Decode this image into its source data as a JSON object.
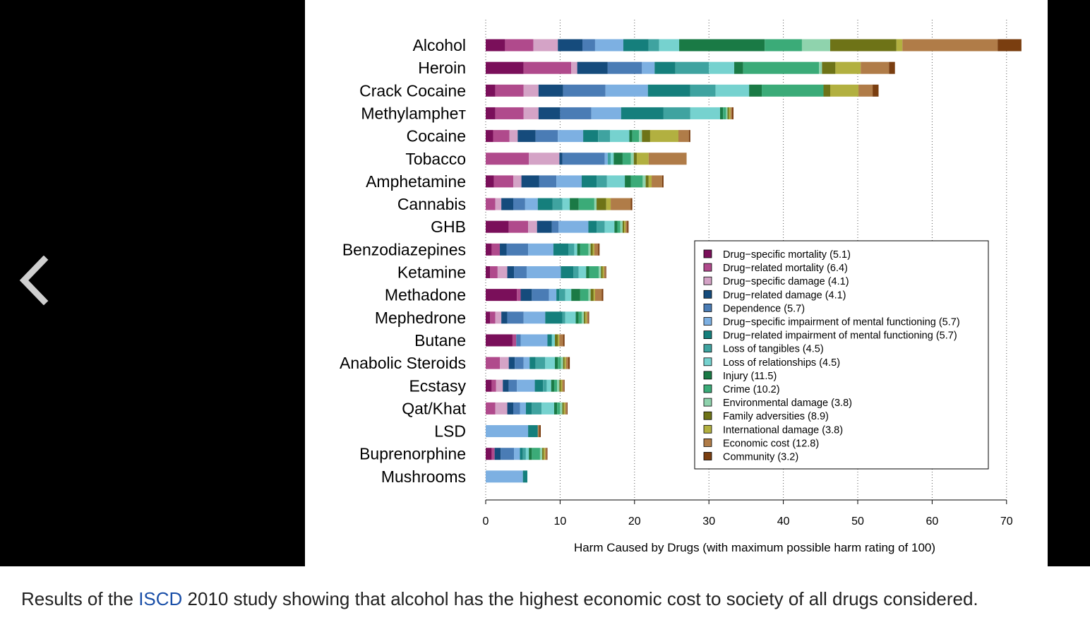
{
  "colors": {
    "viewer_background": "#000000",
    "caption_link": "#1a4fa8",
    "arrow": "#cfcfcf"
  },
  "viewer": {
    "prev_icon": "chevron-left-icon"
  },
  "caption": {
    "before": "Results of the ",
    "link": "ISCD",
    "after": " 2010 study showing that alcohol has the highest economic cost to society of all drugs considered."
  },
  "chart_data": {
    "type": "bar",
    "orientation": "horizontal",
    "stacked": true,
    "xlabel": "Harm Caused by Drugs (with maximum possible harm rating of 100)",
    "xlim": [
      0,
      70
    ],
    "xticks": [
      0,
      10,
      20,
      30,
      40,
      50,
      60,
      70
    ],
    "grid": "vertical dotted",
    "legend_position": "right",
    "categories": [
      "Alcohol",
      "Heroin",
      "Crack Cocaine",
      "Methylampheт",
      "Cocaine",
      "Tobacco",
      "Amphetamine",
      "Cannabis",
      "GHB",
      "Benzodiazepines",
      "Ketamine",
      "Methadone",
      "Mephedrone",
      "Butane",
      "Anabolic Steroids",
      "Ecstasy",
      "Qat/Khat",
      "LSD",
      "Buprenorphine",
      "Mushrooms"
    ],
    "series": [
      {
        "name": "Drug−specific mortality (5.1)",
        "color": "#7a0f5a",
        "values": [
          2.6,
          5.1,
          1.3,
          1.3,
          1.0,
          0,
          1.1,
          0,
          3.1,
          0.8,
          0.6,
          4.2,
          0.6,
          3.6,
          0,
          0.8,
          0,
          0,
          0.8,
          0
        ]
      },
      {
        "name": "Drug−related mortality (6.4)",
        "color": "#b04a8c",
        "values": [
          3.8,
          6.4,
          3.8,
          3.8,
          2.2,
          5.8,
          2.6,
          1.3,
          2.6,
          1.1,
          1.0,
          0.5,
          0.7,
          0.5,
          1.9,
          0.6,
          1.3,
          0,
          0.4,
          0
        ]
      },
      {
        "name": "Drug−specific damage (4.1)",
        "color": "#d4a3c6",
        "values": [
          3.3,
          0.8,
          2.0,
          2.0,
          1.1,
          4.1,
          1.1,
          0.8,
          1.2,
          0,
          1.3,
          0,
          0.8,
          0,
          1.2,
          0.9,
          1.6,
          0,
          0,
          0
        ]
      },
      {
        "name": "Drug−related damage (4.1)",
        "color": "#154b7c",
        "values": [
          3.3,
          4.1,
          3.3,
          2.9,
          2.4,
          0.4,
          2.4,
          1.6,
          2.0,
          0.9,
          0.9,
          1.5,
          0.8,
          0,
          0.8,
          0.8,
          0.8,
          0,
          0.8,
          0
        ]
      },
      {
        "name": "Dependence (5.7)",
        "color": "#4a7cb5",
        "values": [
          1.7,
          4.6,
          5.7,
          4.2,
          3.0,
          5.7,
          2.3,
          1.6,
          0.9,
          2.9,
          1.7,
          2.3,
          2.2,
          0.6,
          1.2,
          1.1,
          0.9,
          0,
          1.8,
          0
        ]
      },
      {
        "name": "Drug−specific impairment of mental functioning (5.7)",
        "color": "#7db0e2",
        "values": [
          3.8,
          1.7,
          5.7,
          4.0,
          3.4,
          0.4,
          3.4,
          1.7,
          4.0,
          3.4,
          4.6,
          1.0,
          2.9,
          3.6,
          0.8,
          2.4,
          0.8,
          5.7,
          0.8,
          5.0
        ]
      },
      {
        "name": "Drug−related impairment of mental functioning (5.7)",
        "color": "#157f7c",
        "values": [
          3.4,
          2.8,
          5.7,
          5.7,
          2.0,
          0,
          2.0,
          2.0,
          1.1,
          2.0,
          1.7,
          0.4,
          2.3,
          0.6,
          0.8,
          1.1,
          0.8,
          1.3,
          0.4,
          0.6
        ]
      },
      {
        "name": "Loss of tangibles (4.5)",
        "color": "#3fa3a0",
        "values": [
          1.4,
          4.5,
          3.4,
          3.6,
          1.6,
          0.4,
          1.4,
          1.3,
          1.1,
          0.8,
          0.7,
          0.8,
          0.4,
          0,
          1.3,
          0.5,
          1.3,
          0,
          0.4,
          0
        ]
      },
      {
        "name": "Loss of relationships (4.5)",
        "color": "#76d2cf",
        "values": [
          2.7,
          3.4,
          4.5,
          4.0,
          2.6,
          0.4,
          2.4,
          1.0,
          1.3,
          0.4,
          1.0,
          0.8,
          1.4,
          0.4,
          1.3,
          0.6,
          1.7,
          0,
          0.4,
          0
        ]
      },
      {
        "name": "Injury (11.5)",
        "color": "#1a7a45",
        "values": [
          11.5,
          1.2,
          1.7,
          0.4,
          0.4,
          1.2,
          0.8,
          1.2,
          0.4,
          0.4,
          0.4,
          1.2,
          0.4,
          0,
          0.4,
          0.4,
          0.4,
          0,
          0.4,
          0
        ]
      },
      {
        "name": "Crime (10.2)",
        "color": "#3bab78",
        "values": [
          5.0,
          10.2,
          8.3,
          0.4,
          0.9,
          1.1,
          1.6,
          2.1,
          0.4,
          1.1,
          1.3,
          1.1,
          0.4,
          0,
          0.4,
          0.4,
          0.4,
          0,
          1.1,
          0
        ]
      },
      {
        "name": "Environmental damage (3.8)",
        "color": "#8fd3ad",
        "values": [
          3.8,
          0.4,
          0,
          0.2,
          0.4,
          0.4,
          0.4,
          0.3,
          0.3,
          0.3,
          0.3,
          0.3,
          0.3,
          0,
          0.3,
          0.3,
          0.3,
          0,
          0.3,
          0
        ]
      },
      {
        "name": "Family adversities (8.9)",
        "color": "#6e7317",
        "values": [
          8.9,
          1.8,
          0.9,
          0.2,
          1.1,
          0.4,
          0.4,
          1.3,
          0.2,
          0.3,
          0.2,
          0.4,
          0.2,
          0.4,
          0.2,
          0.2,
          0.2,
          0,
          0.2,
          0
        ]
      },
      {
        "name": "International damage (3.8)",
        "color": "#b2b040",
        "values": [
          0.8,
          3.4,
          3.8,
          0.2,
          3.8,
          1.6,
          0.4,
          0.6,
          0.2,
          0.2,
          0.2,
          0.2,
          0.2,
          0.2,
          0.2,
          0.2,
          0.2,
          0,
          0.2,
          0
        ]
      },
      {
        "name": "Economic cost (12.8)",
        "color": "#b07c48",
        "values": [
          12.8,
          3.8,
          1.9,
          0.2,
          1.4,
          5.1,
          1.4,
          2.7,
          0.2,
          0.5,
          0.2,
          0.9,
          0.2,
          0.5,
          0.3,
          0.2,
          0.2,
          0.2,
          0.2,
          0
        ]
      },
      {
        "name": "Community (3.2)",
        "color": "#7a3e10",
        "values": [
          3.2,
          0.8,
          0.8,
          0.2,
          0.2,
          0,
          0.2,
          0.2,
          0.2,
          0.2,
          0.1,
          0.2,
          0.1,
          0.2,
          0.2,
          0.1,
          0.1,
          0.2,
          0.1,
          0
        ]
      }
    ]
  }
}
